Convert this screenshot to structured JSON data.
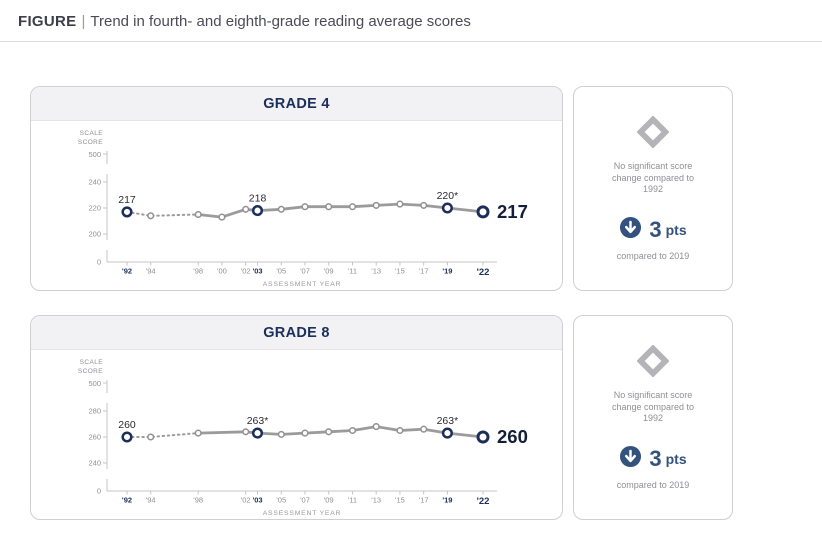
{
  "header": {
    "label": "FIGURE",
    "separator": "|",
    "title": "Trend in fourth- and eighth-grade reading average scores"
  },
  "chart_data": [
    {
      "type": "line",
      "title": "GRADE 4",
      "ylabel": "SCALE SCORE",
      "xlabel": "ASSESSMENT YEAR",
      "y_axis_display": [
        "500",
        "240",
        "220",
        "200",
        "0"
      ],
      "plot_ticks": [
        200,
        220,
        240
      ],
      "x": [
        1992,
        1994,
        1998,
        2000,
        2002,
        2003,
        2005,
        2007,
        2009,
        2011,
        2013,
        2015,
        2017,
        2019,
        2022
      ],
      "x_tick_labels": [
        "'92",
        "'94",
        "'98",
        "'00",
        "'02",
        "'03",
        "'05",
        "'07",
        "'09",
        "'11",
        "'13",
        "'15",
        "'17",
        "'19",
        "'22"
      ],
      "values": [
        217,
        214,
        215,
        213,
        219,
        218,
        219,
        221,
        221,
        221,
        222,
        223,
        222,
        220,
        217
      ],
      "dashed_until": 1998,
      "highlight_years": [
        1992,
        2003,
        2019,
        2022
      ],
      "point_labels": [
        {
          "year": 1992,
          "label": "217"
        },
        {
          "year": 2003,
          "label": "218"
        },
        {
          "year": 2019,
          "label": "220*"
        }
      ],
      "end_value_label": "217"
    },
    {
      "type": "line",
      "title": "GRADE 8",
      "ylabel": "SCALE SCORE",
      "xlabel": "ASSESSMENT YEAR",
      "y_axis_display": [
        "500",
        "280",
        "260",
        "240",
        "0"
      ],
      "plot_ticks": [
        240,
        260,
        280
      ],
      "x": [
        1992,
        1994,
        1998,
        2002,
        2003,
        2005,
        2007,
        2009,
        2011,
        2013,
        2015,
        2017,
        2019,
        2022
      ],
      "x_tick_labels": [
        "'92",
        "'94",
        "'98",
        "'02",
        "'03",
        "'05",
        "'07",
        "'09",
        "'11",
        "'13",
        "'15",
        "'17",
        "'19",
        "'22"
      ],
      "values": [
        260,
        260,
        263,
        264,
        263,
        262,
        263,
        264,
        265,
        268,
        265,
        266,
        263,
        260
      ],
      "dashed_until": 1998,
      "highlight_years": [
        1992,
        2003,
        2019,
        2022
      ],
      "point_labels": [
        {
          "year": 1992,
          "label": "260"
        },
        {
          "year": 2003,
          "label": "263*"
        },
        {
          "year": 2019,
          "label": "263*"
        }
      ],
      "end_value_label": "260"
    }
  ],
  "summary_cards": [
    {
      "no_change_text": "No significant score change compared to 1992",
      "change_value": "3",
      "change_unit": "pts",
      "change_caption": "compared to 2019"
    },
    {
      "no_change_text": "No significant score change compared to 1992",
      "change_value": "3",
      "change_unit": "pts",
      "change_caption": "compared to 2019"
    }
  ],
  "colors": {
    "navy": "#1b2f5a",
    "dark": "#141e38",
    "accent": "#33527e",
    "line": "#9b9b9b",
    "marker_gray": "#8f8f94",
    "muted": "#8f8f95",
    "axis": "#c5c5c9"
  }
}
